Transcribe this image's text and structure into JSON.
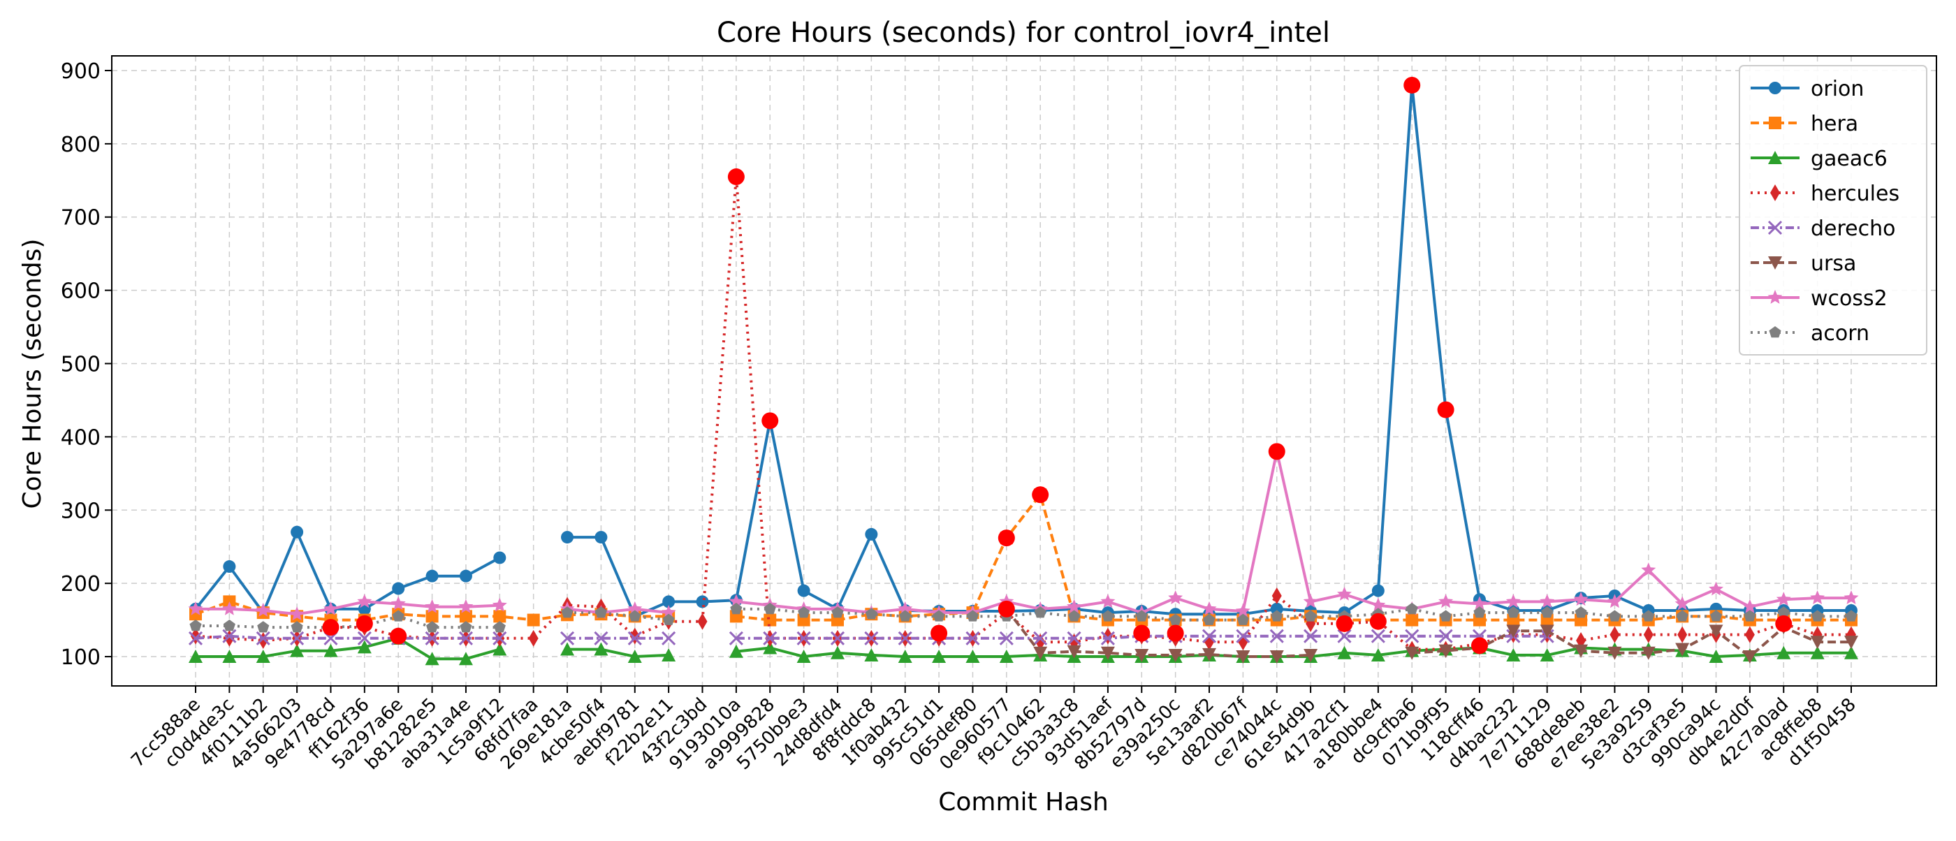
{
  "chart_data": {
    "type": "line",
    "title": "Core Hours (seconds) for control_iovr4_intel",
    "xlabel": "Commit Hash",
    "ylabel": "Core Hours (seconds)",
    "ylim": [
      60,
      920
    ],
    "yticks": [
      100,
      200,
      300,
      400,
      500,
      600,
      700,
      800,
      900
    ],
    "grid": true,
    "legend_position": "top-right",
    "categories": [
      "7cc588ae",
      "c0d4de3c",
      "4f0111b2",
      "4a566203",
      "9e4778cd",
      "ff162f36",
      "5a297a6e",
      "b81282e5",
      "aba31a4e",
      "1c5a9f12",
      "68fd7faa",
      "269e181a",
      "4cbe50f4",
      "aebf9781",
      "f22b2e11",
      "43f2c3bd",
      "9193010a",
      "a9999828",
      "5750b9e3",
      "24d8dfd4",
      "8f8fddc8",
      "1f0ab432",
      "995c51d1",
      "065def80",
      "0e960577",
      "f9c10462",
      "c5b3a3c8",
      "93d51aef",
      "8b52797d",
      "e39a250c",
      "5e13aaf2",
      "d820b67f",
      "ce74044c",
      "61e54d9b",
      "417a2cf1",
      "a180bbe4",
      "dc9cfba6",
      "071b9f95",
      "118cff46",
      "d4bac232",
      "7e711129",
      "688de8eb",
      "e7ee38e2",
      "5e3a9259",
      "d3caf3e5",
      "990ca94c",
      "db4e2d0f",
      "42c7a0ad",
      "ac8ffeb8",
      "d1f50458"
    ],
    "series": [
      {
        "name": "orion",
        "color": "#1f77b4",
        "dash": "",
        "marker": "circle",
        "values": [
          165,
          223,
          160,
          270,
          165,
          165,
          193,
          210,
          210,
          235,
          null,
          263,
          263,
          155,
          175,
          175,
          177,
          422,
          190,
          165,
          267,
          163,
          162,
          162,
          162,
          163,
          165,
          160,
          162,
          158,
          158,
          158,
          165,
          162,
          160,
          190,
          880,
          437,
          178,
          163,
          163,
          180,
          183,
          163,
          163,
          165,
          163,
          163,
          163,
          163
        ]
      },
      {
        "name": "hera",
        "color": "#ff7f0e",
        "dash": "12,6",
        "marker": "square",
        "values": [
          158,
          175,
          160,
          155,
          150,
          150,
          158,
          155,
          155,
          155,
          150,
          157,
          158,
          155,
          155,
          null,
          155,
          150,
          150,
          150,
          158,
          155,
          158,
          160,
          262,
          321,
          155,
          150,
          150,
          150,
          150,
          150,
          150,
          155,
          150,
          150,
          150,
          150,
          150,
          150,
          150,
          150,
          150,
          150,
          155,
          155,
          150,
          150,
          150,
          150
        ]
      },
      {
        "name": "gaeac6",
        "color": "#2ca02c",
        "dash": "",
        "marker": "triangle",
        "values": [
          100,
          100,
          100,
          108,
          108,
          113,
          125,
          97,
          97,
          110,
          null,
          110,
          110,
          100,
          102,
          null,
          107,
          112,
          100,
          105,
          102,
          100,
          100,
          100,
          100,
          102,
          100,
          100,
          100,
          100,
          102,
          100,
          100,
          100,
          105,
          102,
          108,
          110,
          112,
          102,
          102,
          112,
          110,
          110,
          108,
          100,
          102,
          105,
          105,
          105
        ]
      },
      {
        "name": "hercules",
        "color": "#d62728",
        "dash": "3,7",
        "marker": "diamond",
        "values": [
          128,
          125,
          122,
          125,
          140,
          140,
          128,
          125,
          125,
          125,
          125,
          170,
          168,
          128,
          148,
          148,
          755,
          125,
          125,
          125,
          125,
          125,
          125,
          125,
          160,
          120,
          120,
          128,
          128,
          125,
          120,
          120,
          183,
          145,
          145,
          148,
          110,
          110,
          118,
          130,
          130,
          122,
          130,
          130,
          130,
          130,
          130,
          145,
          130,
          130
        ]
      },
      {
        "name": "derecho",
        "color": "#9467bd",
        "dash": "12,5,3,5",
        "marker": "x",
        "values": [
          125,
          128,
          125,
          125,
          125,
          125,
          125,
          125,
          125,
          125,
          null,
          125,
          125,
          125,
          125,
          null,
          125,
          125,
          125,
          125,
          125,
          125,
          125,
          125,
          125,
          125,
          125,
          125,
          128,
          128,
          128,
          128,
          128,
          128,
          128,
          128,
          128,
          128,
          128,
          128,
          128,
          null,
          null,
          null,
          null,
          null,
          null,
          null,
          null,
          null
        ]
      },
      {
        "name": "ursa",
        "color": "#8c564b",
        "dash": "12,6",
        "marker": "triangle-down",
        "values": [
          null,
          null,
          null,
          null,
          null,
          null,
          null,
          null,
          null,
          null,
          null,
          null,
          null,
          null,
          null,
          null,
          null,
          null,
          null,
          null,
          null,
          null,
          null,
          null,
          165,
          105,
          107,
          105,
          102,
          102,
          103,
          100,
          100,
          102,
          null,
          null,
          105,
          108,
          112,
          135,
          135,
          108,
          105,
          105,
          110,
          135,
          100,
          140,
          120,
          120
        ]
      },
      {
        "name": "wcoss2",
        "color": "#e377c2",
        "dash": "",
        "marker": "star",
        "values": [
          165,
          165,
          163,
          158,
          165,
          175,
          172,
          168,
          168,
          170,
          null,
          165,
          160,
          165,
          160,
          null,
          175,
          170,
          165,
          165,
          160,
          165,
          160,
          160,
          175,
          165,
          168,
          175,
          160,
          180,
          165,
          162,
          380,
          175,
          185,
          170,
          165,
          175,
          172,
          175,
          175,
          178,
          175,
          218,
          172,
          192,
          168,
          178,
          180,
          180
        ]
      },
      {
        "name": "acorn",
        "color": "#7f7f7f",
        "dash": "3,7",
        "marker": "pentagon",
        "values": [
          142,
          142,
          140,
          140,
          140,
          142,
          155,
          140,
          140,
          140,
          null,
          160,
          160,
          155,
          150,
          null,
          165,
          165,
          160,
          160,
          158,
          155,
          155,
          155,
          155,
          160,
          155,
          155,
          155,
          150,
          150,
          150,
          155,
          155,
          155,
          158,
          165,
          155,
          160,
          160,
          160,
          160,
          155,
          155,
          155,
          155,
          155,
          160,
          155,
          155
        ]
      }
    ],
    "highlight_points": [
      {
        "category": "9e4778cd",
        "value": 140
      },
      {
        "category": "ff162f36",
        "value": 145
      },
      {
        "category": "5a297a6e",
        "value": 128
      },
      {
        "category": "9193010a",
        "value": 755
      },
      {
        "category": "a9999828",
        "value": 422
      },
      {
        "category": "995c51d1",
        "value": 132
      },
      {
        "category": "0e960577",
        "value": 262
      },
      {
        "category": "f9c10462",
        "value": 321
      },
      {
        "category": "0e960577",
        "value": 165
      },
      {
        "category": "8b52797d",
        "value": 132
      },
      {
        "category": "e39a250c",
        "value": 132
      },
      {
        "category": "ce74044c",
        "value": 380
      },
      {
        "category": "a180bbe4",
        "value": 148
      },
      {
        "category": "417a2cf1",
        "value": 145
      },
      {
        "category": "dc9cfba6",
        "value": 880
      },
      {
        "category": "071b9f95",
        "value": 437
      },
      {
        "category": "118cff46",
        "value": 115
      },
      {
        "category": "42c7a0ad",
        "value": 145
      }
    ],
    "highlight_color": "#ff0000"
  }
}
